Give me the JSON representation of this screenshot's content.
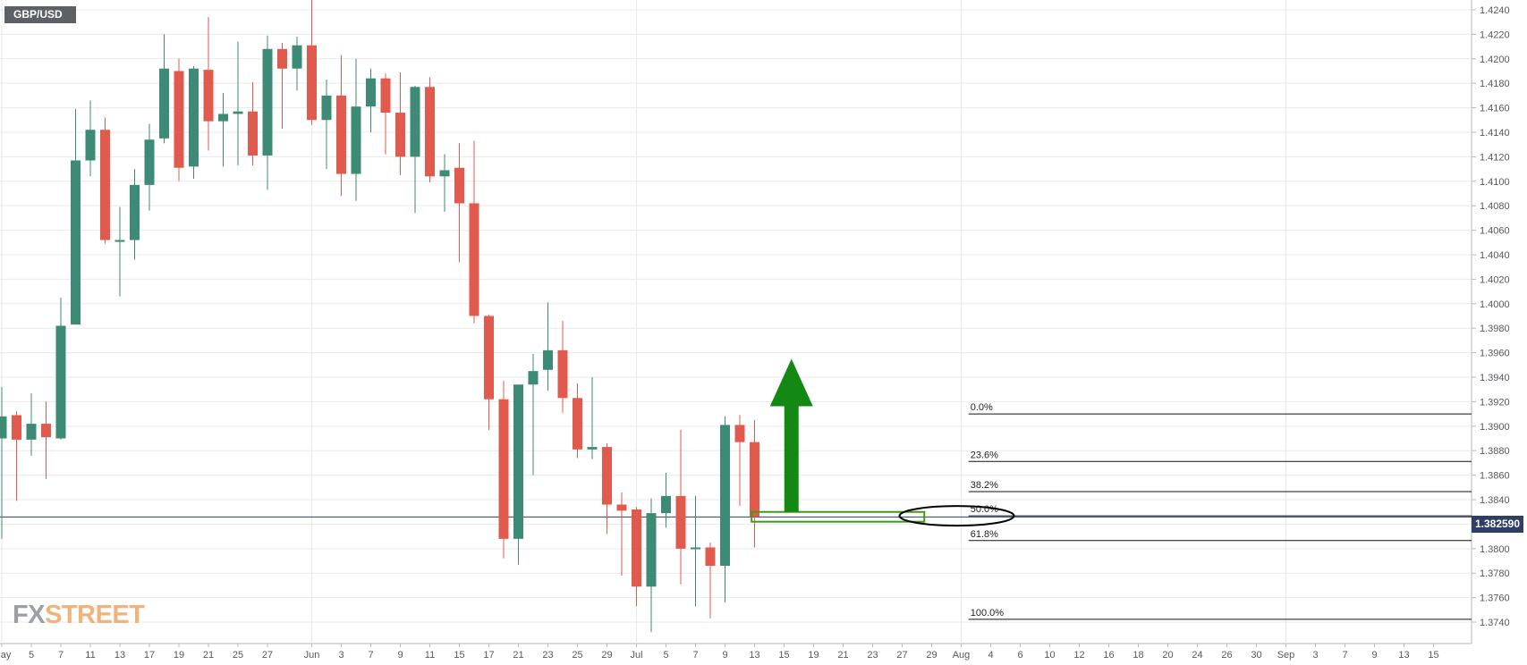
{
  "symbol": "GBP/USD",
  "logo": {
    "part1": "FX",
    "part2": "STREET"
  },
  "current_price": {
    "label": "1.382590",
    "value": 1.38259
  },
  "colors": {
    "up": "#3d8b76",
    "down": "#e05a4d",
    "arrow": "#138813",
    "fib_box": "#3f9a18",
    "price_badge": "#2f3e63",
    "grid": "#e9e9ea"
  },
  "chart_data": {
    "type": "candlestick",
    "title": "GBP/USD",
    "y_axis": {
      "ticks": [
        "1.4240",
        "1.4220",
        "1.4200",
        "1.4180",
        "1.4160",
        "1.4140",
        "1.4120",
        "1.4100",
        "1.4080",
        "1.4060",
        "1.4040",
        "1.4020",
        "1.4000",
        "1.3980",
        "1.3960",
        "1.3940",
        "1.3920",
        "1.3900",
        "1.3880",
        "1.3860",
        "1.3840",
        "1.3820",
        "1.3800",
        "1.3780",
        "1.3760",
        "1.3740"
      ],
      "range": [
        1.3732,
        1.4248
      ]
    },
    "x_axis": {
      "ticks": [
        {
          "label": "May",
          "i": 0
        },
        {
          "label": "5",
          "i": 2
        },
        {
          "label": "7",
          "i": 4
        },
        {
          "label": "11",
          "i": 6
        },
        {
          "label": "13",
          "i": 8
        },
        {
          "label": "17",
          "i": 10
        },
        {
          "label": "19",
          "i": 12
        },
        {
          "label": "21",
          "i": 14
        },
        {
          "label": "25",
          "i": 16
        },
        {
          "label": "27",
          "i": 18
        },
        {
          "label": "Jun",
          "i": 21
        },
        {
          "label": "3",
          "i": 23
        },
        {
          "label": "7",
          "i": 25
        },
        {
          "label": "9",
          "i": 27
        },
        {
          "label": "11",
          "i": 29
        },
        {
          "label": "15",
          "i": 31
        },
        {
          "label": "17",
          "i": 33
        },
        {
          "label": "21",
          "i": 35
        },
        {
          "label": "23",
          "i": 37
        },
        {
          "label": "25",
          "i": 39
        },
        {
          "label": "29",
          "i": 41
        },
        {
          "label": "Jul",
          "i": 43
        },
        {
          "label": "5",
          "i": 45
        },
        {
          "label": "7",
          "i": 47
        },
        {
          "label": "9",
          "i": 49
        },
        {
          "label": "13",
          "i": 51
        },
        {
          "label": "15",
          "i": 53
        },
        {
          "label": "19",
          "i": 55
        },
        {
          "label": "21",
          "i": 57
        },
        {
          "label": "23",
          "i": 59
        },
        {
          "label": "27",
          "i": 61
        },
        {
          "label": "29",
          "i": 63
        },
        {
          "label": "Aug",
          "i": 65
        },
        {
          "label": "4",
          "i": 67
        },
        {
          "label": "6",
          "i": 69
        },
        {
          "label": "10",
          "i": 71
        },
        {
          "label": "12",
          "i": 73
        },
        {
          "label": "16",
          "i": 75
        },
        {
          "label": "18",
          "i": 77
        },
        {
          "label": "20",
          "i": 79
        },
        {
          "label": "24",
          "i": 81
        },
        {
          "label": "26",
          "i": 83
        },
        {
          "label": "30",
          "i": 85
        },
        {
          "label": "Sep",
          "i": 87
        },
        {
          "label": "3",
          "i": 89
        },
        {
          "label": "7",
          "i": 91
        },
        {
          "label": "9",
          "i": 93
        },
        {
          "label": "13",
          "i": 95
        },
        {
          "label": "15",
          "i": 97
        }
      ]
    },
    "candles": [
      {
        "o": 1.389,
        "h": 1.3932,
        "l": 1.3808,
        "c": 1.3908
      },
      {
        "o": 1.3909,
        "h": 1.3912,
        "l": 1.3839,
        "c": 1.3889
      },
      {
        "o": 1.3889,
        "h": 1.3927,
        "l": 1.3876,
        "c": 1.3902
      },
      {
        "o": 1.3902,
        "h": 1.392,
        "l": 1.3857,
        "c": 1.3891
      },
      {
        "o": 1.389,
        "h": 1.4005,
        "l": 1.3889,
        "c": 1.3982
      },
      {
        "o": 1.3983,
        "h": 1.4159,
        "l": 1.3983,
        "c": 1.4117
      },
      {
        "o": 1.4117,
        "h": 1.4166,
        "l": 1.4104,
        "c": 1.4142
      },
      {
        "o": 1.4142,
        "h": 1.4152,
        "l": 1.4049,
        "c": 1.4052
      },
      {
        "o": 1.4052,
        "h": 1.4079,
        "l": 1.4006,
        "c": 1.4052
      },
      {
        "o": 1.4052,
        "h": 1.411,
        "l": 1.4036,
        "c": 1.4097
      },
      {
        "o": 1.4097,
        "h": 1.4147,
        "l": 1.4076,
        "c": 1.4134
      },
      {
        "o": 1.4135,
        "h": 1.422,
        "l": 1.4131,
        "c": 1.4192
      },
      {
        "o": 1.419,
        "h": 1.42,
        "l": 1.41,
        "c": 1.4111
      },
      {
        "o": 1.4112,
        "h": 1.4194,
        "l": 1.4102,
        "c": 1.4192
      },
      {
        "o": 1.4191,
        "h": 1.4234,
        "l": 1.4125,
        "c": 1.4149
      },
      {
        "o": 1.4149,
        "h": 1.4172,
        "l": 1.4112,
        "c": 1.4155
      },
      {
        "o": 1.4155,
        "h": 1.4214,
        "l": 1.4113,
        "c": 1.4157
      },
      {
        "o": 1.4157,
        "h": 1.4181,
        "l": 1.4113,
        "c": 1.4121
      },
      {
        "o": 1.4121,
        "h": 1.4219,
        "l": 1.4093,
        "c": 1.4208
      },
      {
        "o": 1.4208,
        "h": 1.4213,
        "l": 1.4143,
        "c": 1.4192
      },
      {
        "o": 1.4192,
        "h": 1.4218,
        "l": 1.4174,
        "c": 1.4211
      },
      {
        "o": 1.4211,
        "h": 1.425,
        "l": 1.4146,
        "c": 1.415
      },
      {
        "o": 1.415,
        "h": 1.4183,
        "l": 1.411,
        "c": 1.417
      },
      {
        "o": 1.417,
        "h": 1.4203,
        "l": 1.4088,
        "c": 1.4106
      },
      {
        "o": 1.4106,
        "h": 1.42,
        "l": 1.4084,
        "c": 1.4161
      },
      {
        "o": 1.4161,
        "h": 1.4192,
        "l": 1.414,
        "c": 1.4184
      },
      {
        "o": 1.4184,
        "h": 1.4188,
        "l": 1.4122,
        "c": 1.4156
      },
      {
        "o": 1.4156,
        "h": 1.4189,
        "l": 1.4105,
        "c": 1.412
      },
      {
        "o": 1.412,
        "h": 1.4178,
        "l": 1.4074,
        "c": 1.4177
      },
      {
        "o": 1.4177,
        "h": 1.4185,
        "l": 1.4099,
        "c": 1.4104
      },
      {
        "o": 1.4104,
        "h": 1.4122,
        "l": 1.4075,
        "c": 1.4109
      },
      {
        "o": 1.4111,
        "h": 1.4131,
        "l": 1.4034,
        "c": 1.4082
      },
      {
        "o": 1.4082,
        "h": 1.4133,
        "l": 1.3984,
        "c": 1.399
      },
      {
        "o": 1.399,
        "h": 1.3991,
        "l": 1.3897,
        "c": 1.3922
      },
      {
        "o": 1.3922,
        "h": 1.3937,
        "l": 1.3792,
        "c": 1.3808
      },
      {
        "o": 1.3808,
        "h": 1.3933,
        "l": 1.3787,
        "c": 1.3934
      },
      {
        "o": 1.3934,
        "h": 1.3959,
        "l": 1.386,
        "c": 1.3945
      },
      {
        "o": 1.3946,
        "h": 1.4001,
        "l": 1.3929,
        "c": 1.3962
      },
      {
        "o": 1.3962,
        "h": 1.3986,
        "l": 1.3911,
        "c": 1.3923
      },
      {
        "o": 1.3923,
        "h": 1.3935,
        "l": 1.3874,
        "c": 1.3881
      },
      {
        "o": 1.3881,
        "h": 1.394,
        "l": 1.3873,
        "c": 1.3883
      },
      {
        "o": 1.3883,
        "h": 1.3886,
        "l": 1.3812,
        "c": 1.3836
      },
      {
        "o": 1.3836,
        "h": 1.3846,
        "l": 1.3778,
        "c": 1.3831
      },
      {
        "o": 1.3832,
        "h": 1.3834,
        "l": 1.3753,
        "c": 1.3769
      },
      {
        "o": 1.3769,
        "h": 1.3841,
        "l": 1.3732,
        "c": 1.3829
      },
      {
        "o": 1.3829,
        "h": 1.3862,
        "l": 1.3817,
        "c": 1.3843
      },
      {
        "o": 1.3843,
        "h": 1.3897,
        "l": 1.3771,
        "c": 1.38
      },
      {
        "o": 1.38,
        "h": 1.3843,
        "l": 1.3753,
        "c": 1.3801
      },
      {
        "o": 1.3801,
        "h": 1.3805,
        "l": 1.3743,
        "c": 1.3786
      },
      {
        "o": 1.3786,
        "h": 1.3908,
        "l": 1.3756,
        "c": 1.3901
      },
      {
        "o": 1.3901,
        "h": 1.3909,
        "l": 1.3835,
        "c": 1.3887
      },
      {
        "o": 1.3887,
        "h": 1.3905,
        "l": 1.3801,
        "c": 1.3826
      }
    ],
    "current_price_line": 1.38259,
    "fibonacci": {
      "levels": [
        {
          "label": "0.0%",
          "price": 1.391
        },
        {
          "label": "23.6%",
          "price": 1.38712
        },
        {
          "label": "38.2%",
          "price": 1.38466
        },
        {
          "label": "50.0%",
          "price": 1.38268
        },
        {
          "label": "61.8%",
          "price": 1.38066
        },
        {
          "label": "100.0%",
          "price": 1.37423
        }
      ],
      "start_index": 65.5
    },
    "annotations": {
      "arrow": {
        "index": 53.5,
        "tail_price": 1.383,
        "head_price": 1.3955,
        "direction": "up"
      },
      "support_box": {
        "start_index": 50.8,
        "end_index": 62.5,
        "top": 1.383,
        "bottom": 1.3822
      },
      "ellipse": {
        "center_index": 64.7,
        "price": 1.38268,
        "label": "50.0%"
      }
    }
  }
}
